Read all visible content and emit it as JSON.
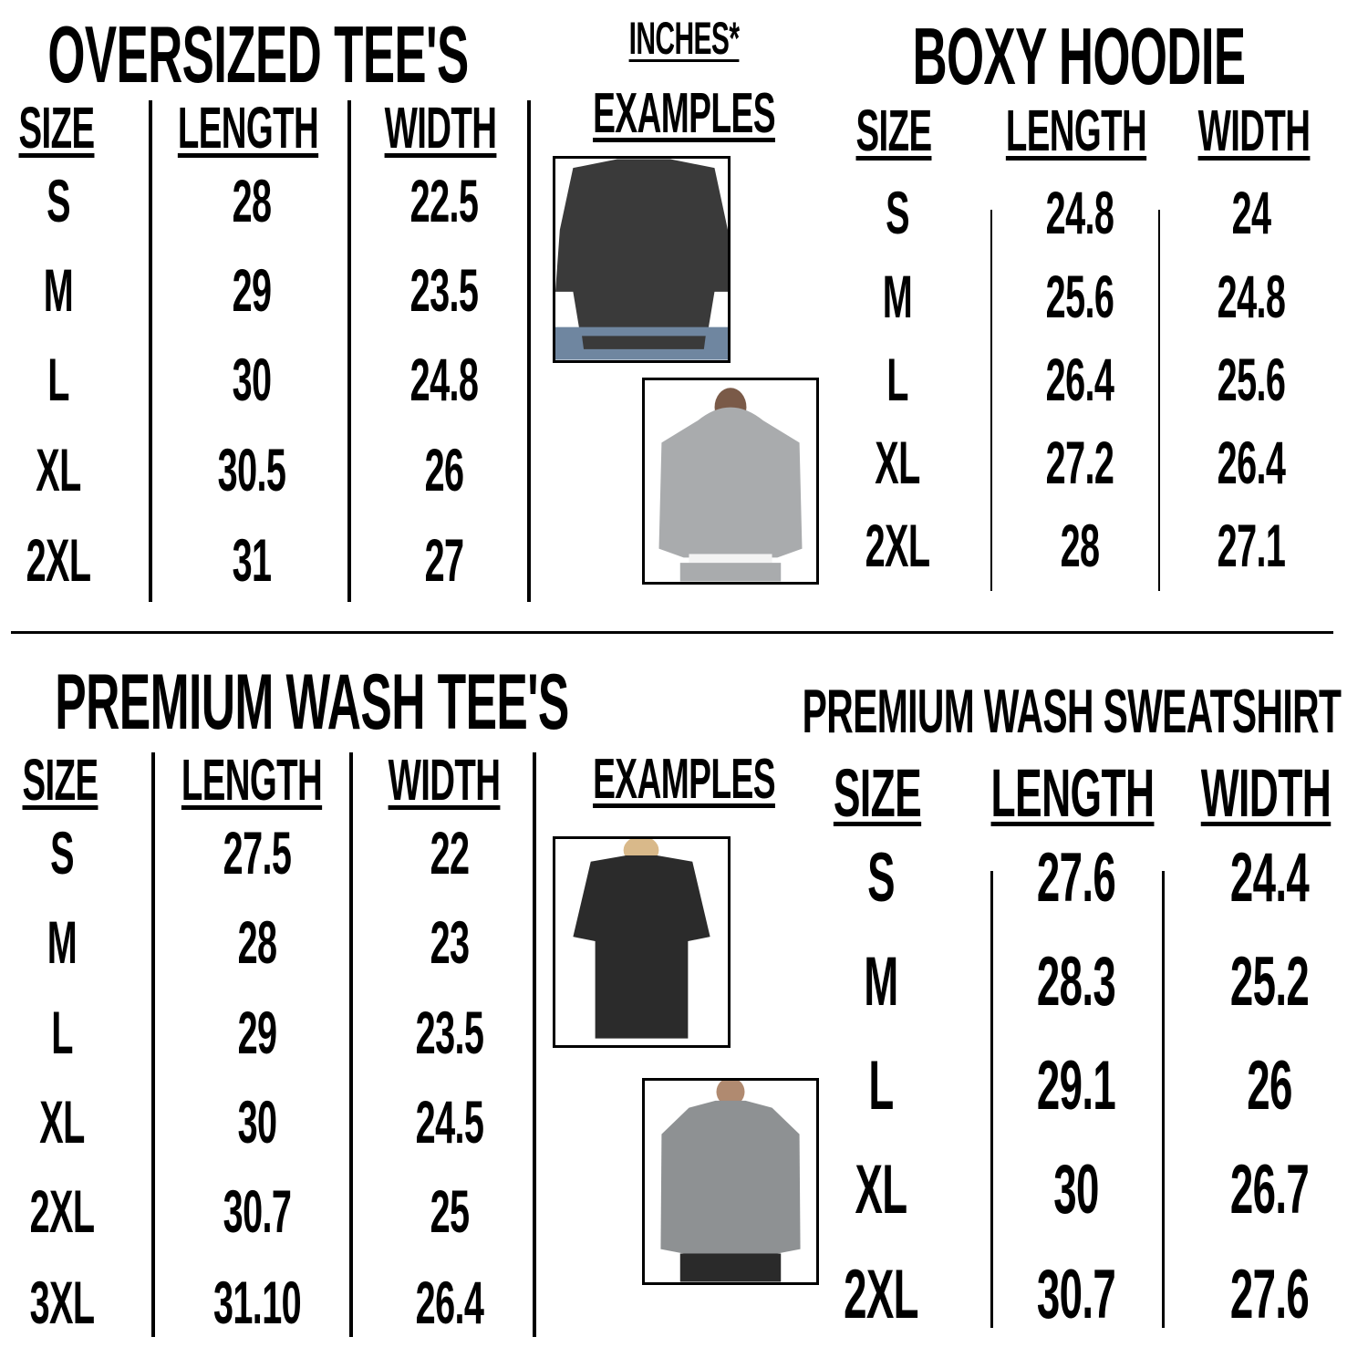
{
  "units_label": "INCHES*",
  "oversized_tees": {
    "title": "OVERSIZED TEE'S",
    "headers": [
      "SIZE",
      "LENGTH",
      "WIDTH"
    ],
    "rows": [
      [
        "S",
        "28",
        "22.5"
      ],
      [
        "M",
        "29",
        "23.5"
      ],
      [
        "L",
        "30",
        "24.8"
      ],
      [
        "XL",
        "30.5",
        "26"
      ],
      [
        "2XL",
        "31",
        "27"
      ]
    ]
  },
  "examples_top": {
    "label": "EXAMPLES",
    "images": [
      {
        "icon": "dark-oversized-tee-photo",
        "color": "#3a3a3a"
      },
      {
        "icon": "gray-boxy-hoodie-photo",
        "color": "#a9abad"
      }
    ]
  },
  "boxy_hoodie": {
    "title": "BOXY HOODIE",
    "headers": [
      "SIZE",
      "LENGTH",
      "WIDTH"
    ],
    "rows": [
      [
        "S",
        "24.8",
        "24"
      ],
      [
        "M",
        "25.6",
        "24.8"
      ],
      [
        "L",
        "26.4",
        "25.6"
      ],
      [
        "XL",
        "27.2",
        "26.4"
      ],
      [
        "2XL",
        "28",
        "27.1"
      ]
    ]
  },
  "premium_wash_tees": {
    "title": "PREMIUM WASH TEE'S",
    "headers": [
      "SIZE",
      "LENGTH",
      "WIDTH"
    ],
    "rows": [
      [
        "S",
        "27.5",
        "22"
      ],
      [
        "M",
        "28",
        "23"
      ],
      [
        "L",
        "29",
        "23.5"
      ],
      [
        "XL",
        "30",
        "24.5"
      ],
      [
        "2XL",
        "30.7",
        "25"
      ],
      [
        "3XL",
        "31.10",
        "26.4"
      ]
    ]
  },
  "examples_bottom": {
    "label": "EXAMPLES",
    "images": [
      {
        "icon": "black-wash-tee-photo",
        "color": "#2b2b2b"
      },
      {
        "icon": "gray-wash-sweatshirt-photo",
        "color": "#8e9193"
      }
    ]
  },
  "premium_wash_sweatshirt": {
    "title": "PREMIUM WASH SWEATSHIRT",
    "headers": [
      "SIZE",
      "LENGTH",
      "WIDTH"
    ],
    "rows": [
      [
        "S",
        "27.6",
        "24.4"
      ],
      [
        "M",
        "28.3",
        "25.2"
      ],
      [
        "L",
        "29.1",
        "26"
      ],
      [
        "XL",
        "30",
        "26.7"
      ],
      [
        "2XL",
        "30.7",
        "27.6"
      ]
    ]
  }
}
